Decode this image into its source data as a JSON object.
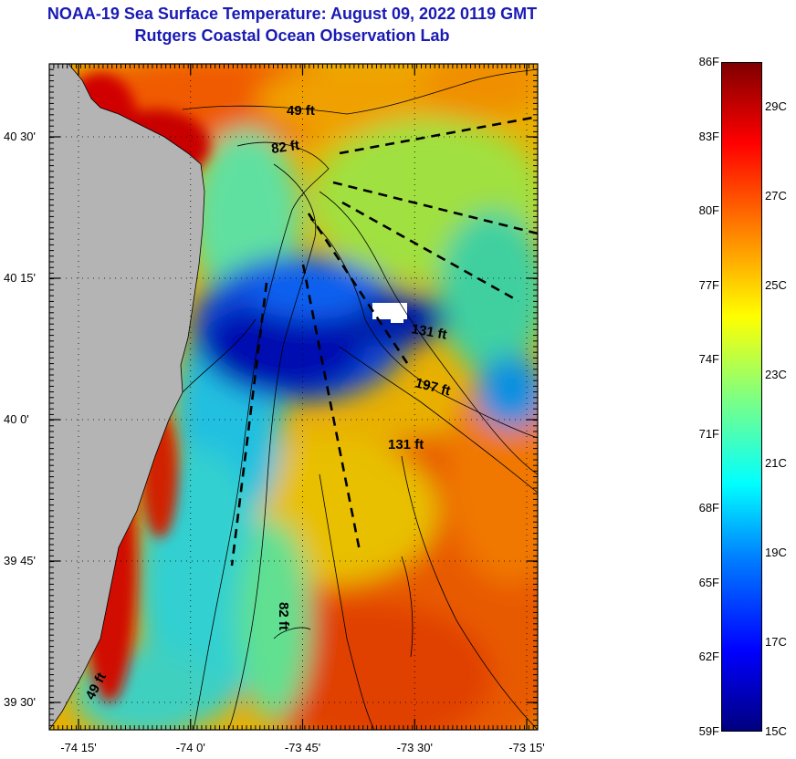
{
  "title": {
    "line1": "NOAA-19 Sea Surface Temperature:  August 09, 2022 0119 GMT",
    "line2": "Rutgers Coastal Ocean Observation Lab"
  },
  "map": {
    "lat_ticks": [
      {
        "label": "40 30'",
        "deg": 40.5
      },
      {
        "label": "40 15'",
        "deg": 40.25
      },
      {
        "label": "40 0'",
        "deg": 40.0
      },
      {
        "label": "39 45'",
        "deg": 39.75
      },
      {
        "label": "39 30'",
        "deg": 39.5
      }
    ],
    "lon_ticks": [
      {
        "label": "-74 15'",
        "deg": -74.25
      },
      {
        "label": "-74 0'",
        "deg": -74.0
      },
      {
        "label": "-73 45'",
        "deg": -73.75
      },
      {
        "label": "-73 30'",
        "deg": -73.5
      },
      {
        "label": "-73 15'",
        "deg": -73.25
      }
    ],
    "depth_labels": [
      "49 ft",
      "82 ft",
      "131 ft",
      "197 ft",
      "131 ft",
      "82 ft",
      "49 ft"
    ],
    "colors": {
      "land": "#b4b4b4",
      "cold": "#00007f",
      "warm": "#8b0000"
    }
  },
  "colorbar": {
    "fahrenheit": [
      "86F",
      "83F",
      "80F",
      "77F",
      "74F",
      "71F",
      "68F",
      "65F",
      "62F",
      "59F"
    ],
    "celsius": [
      "29C",
      "27C",
      "25C",
      "23C",
      "21C",
      "19C",
      "17C",
      "15C"
    ],
    "range_f": [
      59,
      86
    ]
  }
}
